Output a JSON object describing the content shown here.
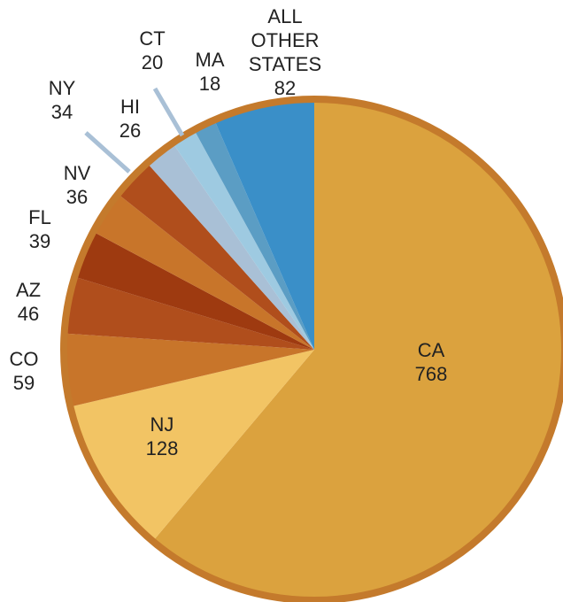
{
  "chart_data": {
    "type": "pie",
    "categories": [
      "CA",
      "NJ",
      "CO",
      "AZ",
      "FL",
      "NV",
      "NY",
      "HI",
      "CT",
      "MA",
      "ALL OTHER STATES"
    ],
    "values": [
      768,
      128,
      59,
      46,
      39,
      36,
      34,
      26,
      20,
      18,
      82
    ],
    "colors": [
      "#dba23e",
      "#f2c464",
      "#c8752a",
      "#b04e1c",
      "#9e3a10",
      "#c8752a",
      "#b04e1c",
      "#a9c0d6",
      "#9ecae1",
      "#5b9dc4",
      "#3a8fc8"
    ],
    "start_angle": 0,
    "direction": "clockwise"
  }
}
